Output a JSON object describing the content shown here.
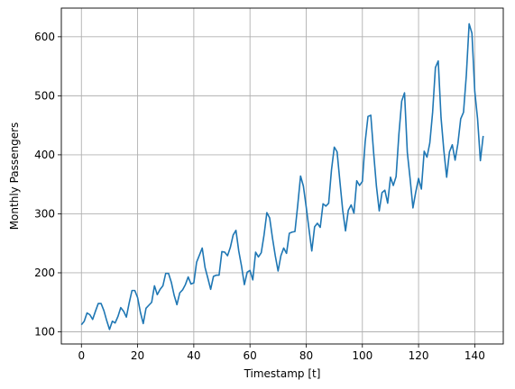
{
  "chart_data": {
    "type": "line",
    "xlabel": "Timestamp [t]",
    "ylabel": "Monthly Passengers",
    "xlim": [
      -7.15,
      150.15
    ],
    "ylim": [
      79.4,
      648.6
    ],
    "xticks": [
      0,
      20,
      40,
      60,
      80,
      100,
      120,
      140
    ],
    "yticks": [
      100,
      200,
      300,
      400,
      500,
      600
    ],
    "grid": true,
    "line_color": "#1f77b4",
    "series": [
      {
        "x_start": 0,
        "x_step": 1,
        "values": [
          112,
          118,
          132,
          129,
          121,
          135,
          148,
          148,
          136,
          119,
          104,
          118,
          115,
          126,
          141,
          135,
          125,
          149,
          170,
          170,
          158,
          133,
          114,
          140,
          145,
          150,
          178,
          163,
          172,
          178,
          199,
          199,
          184,
          162,
          146,
          166,
          171,
          180,
          193,
          181,
          183,
          218,
          230,
          242,
          209,
          191,
          172,
          194,
          196,
          196,
          236,
          235,
          229,
          243,
          264,
          272,
          237,
          211,
          180,
          201,
          204,
          188,
          235,
          227,
          234,
          264,
          302,
          293,
          259,
          229,
          203,
          229,
          242,
          233,
          267,
          269,
          270,
          315,
          364,
          347,
          312,
          274,
          237,
          278,
          284,
          277,
          317,
          313,
          318,
          374,
          413,
          405,
          355,
          306,
          271,
          306,
          315,
          301,
          356,
          348,
          355,
          422,
          465,
          467,
          404,
          347,
          305,
          336,
          340,
          318,
          362,
          348,
          363,
          435,
          491,
          505,
          404,
          359,
          310,
          337,
          360,
          342,
          406,
          396,
          420,
          472,
          548,
          559,
          463,
          407,
          362,
          405,
          417,
          391,
          419,
          461,
          472,
          535,
          622,
          606,
          508,
          461,
          390,
          432
        ]
      }
    ]
  }
}
